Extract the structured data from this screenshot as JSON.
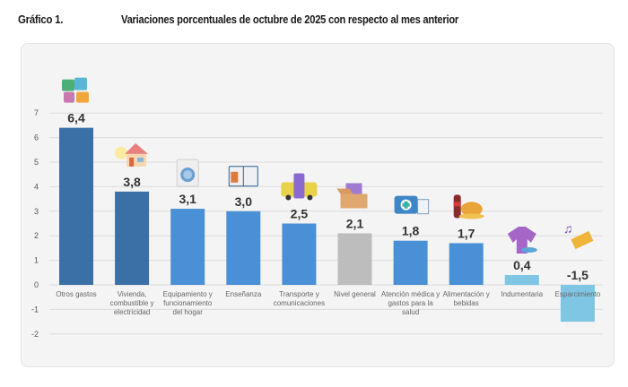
{
  "header": {
    "label": "Gráfico 1.",
    "title": "Variaciones porcentuales de octubre de 2025 con respecto al mes anterior"
  },
  "chart_data": {
    "type": "bar",
    "title": "Variaciones porcentuales de octubre de 2025 con respecto al mes anterior",
    "xlabel": "",
    "ylabel": "",
    "ylim": [
      -2,
      7
    ],
    "yticks": [
      7,
      6,
      5,
      4,
      3,
      2,
      1,
      0,
      -1,
      -2
    ],
    "grid": true,
    "categories": [
      [
        "Otros gastos"
      ],
      [
        "Vivienda,",
        "combustible y",
        "electricidad"
      ],
      [
        "Equipamiento y",
        "funcionamiento",
        "del hogar"
      ],
      [
        "Enseñanza"
      ],
      [
        "Transporte y",
        "comunicaciones"
      ],
      [
        "Nivel general"
      ],
      [
        "Atención médica y",
        "gastos para la",
        "salud"
      ],
      [
        "Alimentación y",
        "bebidas"
      ],
      [
        "Indumentaria"
      ],
      [
        "Esparcimiento"
      ]
    ],
    "values": [
      6.4,
      3.8,
      3.1,
      3.0,
      2.5,
      2.1,
      1.8,
      1.7,
      0.4,
      -1.5
    ],
    "value_labels": [
      "6,4",
      "3,8",
      "3,1",
      "3,0",
      "2,5",
      "2,1",
      "1,8",
      "1,7",
      "0,4",
      "-1,5"
    ],
    "colors": [
      "#3a70a6",
      "#3a70a6",
      "#4a90d6",
      "#4a90d6",
      "#4a90d6",
      "#bdbdbd",
      "#4a90d6",
      "#4a90d6",
      "#7ec6e4",
      "#7ec6e4"
    ],
    "icons": [
      "puzzle-icon",
      "house-icon",
      "washing-machine-icon",
      "book-icon",
      "bus-phone-icon",
      "box-icon",
      "medical-kit-icon",
      "food-drink-icon",
      "clothing-icon",
      "ticket-music-icon"
    ]
  }
}
